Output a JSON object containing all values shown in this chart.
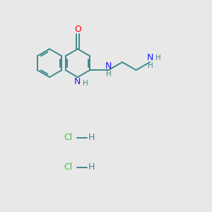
{
  "background_color": "#e8e8e8",
  "bond_color": "#3d8b8b",
  "nitrogen_color": "#1a1aff",
  "oxygen_color": "#ff0000",
  "chlorine_color": "#33cc33",
  "hydrogen_color": "#3d8b8b",
  "bond_width": 1.4,
  "figsize": [
    3.0,
    3.0
  ],
  "dpi": 100,
  "xlim": [
    0,
    10
  ],
  "ylim": [
    0,
    10
  ]
}
